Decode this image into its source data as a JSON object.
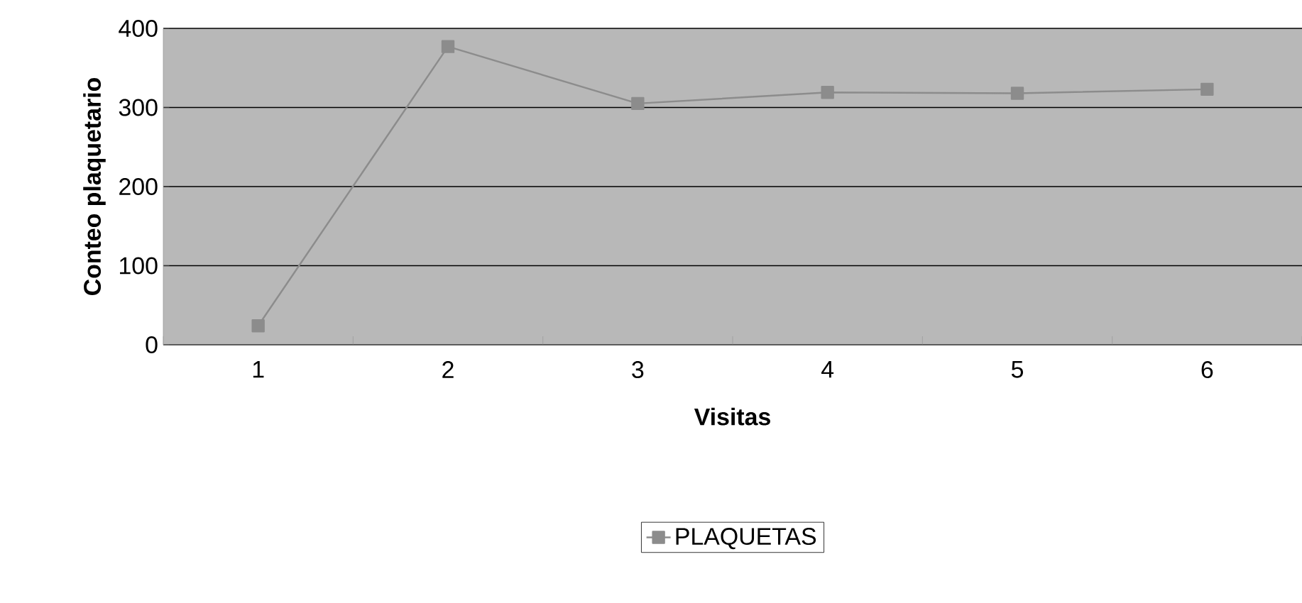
{
  "chart_data": {
    "type": "line",
    "xlabel": "Visitas",
    "ylabel": "Conteo plaquetario",
    "categories": [
      "1",
      "2",
      "3",
      "4",
      "5",
      "6"
    ],
    "series": [
      {
        "name": "PLAQUETAS",
        "color": "#8c8c8c",
        "values": [
          24,
          377,
          305,
          319,
          318,
          323
        ]
      }
    ],
    "ylim": [
      0,
      400
    ],
    "yticks": [
      0,
      100,
      200,
      300,
      400
    ],
    "grid": "y",
    "legend": "bottom",
    "marker": "square",
    "line_style": "solid"
  }
}
